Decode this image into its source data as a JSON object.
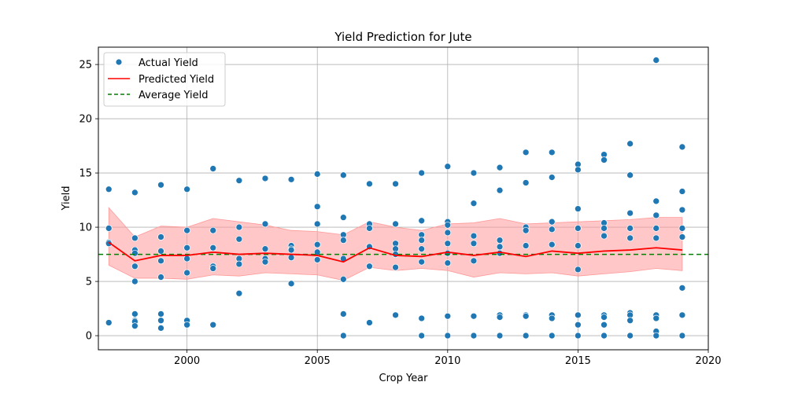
{
  "chart_data": {
    "type": "scatter",
    "title": "Yield Prediction for Jute",
    "xlabel": "Crop Year",
    "ylabel": "Yield",
    "xlim": [
      1996.6,
      2020.0
    ],
    "ylim": [
      -1.3,
      26.6
    ],
    "xticks": [
      2000,
      2005,
      2010,
      2015,
      2020
    ],
    "yticks": [
      0,
      5,
      10,
      15,
      20,
      25
    ],
    "grid": true,
    "legend_position": "top-left",
    "colors": {
      "actual": "#1f77b4",
      "predicted": "#ff0000",
      "average": "#008000",
      "band": "#ff9999"
    },
    "series": [
      {
        "name": "Actual Yield",
        "kind": "scatter",
        "points": [
          [
            1997,
            13.5
          ],
          [
            1997,
            9.9
          ],
          [
            1997,
            8.6
          ],
          [
            1997,
            8.5
          ],
          [
            1997,
            1.2
          ],
          [
            1998,
            13.2
          ],
          [
            1998,
            9.0
          ],
          [
            1998,
            7.9
          ],
          [
            1998,
            7.6
          ],
          [
            1998,
            6.4
          ],
          [
            1998,
            5.0
          ],
          [
            1998,
            2.0
          ],
          [
            1998,
            1.4
          ],
          [
            1998,
            1.3
          ],
          [
            1998,
            0.9
          ],
          [
            1999,
            13.9
          ],
          [
            1999,
            9.1
          ],
          [
            1999,
            7.8
          ],
          [
            1999,
            6.9
          ],
          [
            1999,
            5.4
          ],
          [
            1999,
            2.0
          ],
          [
            1999,
            1.4
          ],
          [
            1999,
            0.7
          ],
          [
            2000,
            13.5
          ],
          [
            2000,
            9.7
          ],
          [
            2000,
            8.1
          ],
          [
            2000,
            7.1
          ],
          [
            2000,
            5.8
          ],
          [
            2000,
            1.4
          ],
          [
            2000,
            1.0
          ],
          [
            2001,
            15.4
          ],
          [
            2001,
            9.7
          ],
          [
            2001,
            8.1
          ],
          [
            2001,
            6.4
          ],
          [
            2001,
            6.2
          ],
          [
            2001,
            1.0
          ],
          [
            2002,
            14.3
          ],
          [
            2002,
            10.0
          ],
          [
            2002,
            8.9
          ],
          [
            2002,
            7.1
          ],
          [
            2002,
            6.6
          ],
          [
            2002,
            3.9
          ],
          [
            2003,
            14.5
          ],
          [
            2003,
            10.3
          ],
          [
            2003,
            8.0
          ],
          [
            2003,
            7.1
          ],
          [
            2003,
            6.8
          ],
          [
            2004,
            14.4
          ],
          [
            2004,
            8.3
          ],
          [
            2004,
            8.0
          ],
          [
            2004,
            7.9
          ],
          [
            2004,
            7.2
          ],
          [
            2004,
            4.8
          ],
          [
            2005,
            14.9
          ],
          [
            2005,
            11.9
          ],
          [
            2005,
            10.3
          ],
          [
            2005,
            8.4
          ],
          [
            2005,
            7.7
          ],
          [
            2005,
            7.0
          ],
          [
            2006,
            14.8
          ],
          [
            2006,
            10.9
          ],
          [
            2006,
            9.3
          ],
          [
            2006,
            8.8
          ],
          [
            2006,
            7.1
          ],
          [
            2006,
            5.2
          ],
          [
            2006,
            2.0
          ],
          [
            2006,
            0.0
          ],
          [
            2007,
            14.0
          ],
          [
            2007,
            10.3
          ],
          [
            2007,
            9.9
          ],
          [
            2007,
            8.2
          ],
          [
            2007,
            6.4
          ],
          [
            2007,
            1.2
          ],
          [
            2008,
            14.0
          ],
          [
            2008,
            10.3
          ],
          [
            2008,
            8.5
          ],
          [
            2008,
            8.0
          ],
          [
            2008,
            7.5
          ],
          [
            2008,
            6.3
          ],
          [
            2008,
            1.9
          ],
          [
            2009,
            15.0
          ],
          [
            2009,
            10.6
          ],
          [
            2009,
            9.3
          ],
          [
            2009,
            8.8
          ],
          [
            2009,
            8.0
          ],
          [
            2009,
            6.8
          ],
          [
            2009,
            1.6
          ],
          [
            2009,
            0.0
          ],
          [
            2010,
            15.6
          ],
          [
            2010,
            10.5
          ],
          [
            2010,
            10.2
          ],
          [
            2010,
            9.5
          ],
          [
            2010,
            8.5
          ],
          [
            2010,
            7.6
          ],
          [
            2010,
            6.7
          ],
          [
            2010,
            1.8
          ],
          [
            2010,
            0.0
          ],
          [
            2011,
            15.0
          ],
          [
            2011,
            12.2
          ],
          [
            2011,
            9.2
          ],
          [
            2011,
            8.5
          ],
          [
            2011,
            6.9
          ],
          [
            2011,
            1.8
          ],
          [
            2011,
            0.0
          ],
          [
            2012,
            15.5
          ],
          [
            2012,
            13.4
          ],
          [
            2012,
            8.8
          ],
          [
            2012,
            8.2
          ],
          [
            2012,
            7.6
          ],
          [
            2012,
            1.9
          ],
          [
            2012,
            1.7
          ],
          [
            2012,
            0.0
          ],
          [
            2013,
            16.9
          ],
          [
            2013,
            14.1
          ],
          [
            2013,
            10.0
          ],
          [
            2013,
            9.7
          ],
          [
            2013,
            8.3
          ],
          [
            2013,
            1.9
          ],
          [
            2013,
            1.8
          ],
          [
            2013,
            0.0
          ],
          [
            2014,
            16.9
          ],
          [
            2014,
            14.6
          ],
          [
            2014,
            10.5
          ],
          [
            2014,
            9.8
          ],
          [
            2014,
            8.4
          ],
          [
            2014,
            1.9
          ],
          [
            2014,
            1.6
          ],
          [
            2014,
            0.0
          ],
          [
            2015,
            15.8
          ],
          [
            2015,
            15.3
          ],
          [
            2015,
            11.7
          ],
          [
            2015,
            9.9
          ],
          [
            2015,
            8.3
          ],
          [
            2015,
            6.1
          ],
          [
            2015,
            1.9
          ],
          [
            2015,
            1.0
          ],
          [
            2015,
            0.0
          ],
          [
            2016,
            16.7
          ],
          [
            2016,
            16.2
          ],
          [
            2016,
            10.4
          ],
          [
            2016,
            9.9
          ],
          [
            2016,
            9.2
          ],
          [
            2016,
            1.9
          ],
          [
            2016,
            1.7
          ],
          [
            2016,
            1.0
          ],
          [
            2016,
            0.0
          ],
          [
            2017,
            17.7
          ],
          [
            2017,
            14.8
          ],
          [
            2017,
            11.3
          ],
          [
            2017,
            9.9
          ],
          [
            2017,
            9.0
          ],
          [
            2017,
            2.1
          ],
          [
            2017,
            1.9
          ],
          [
            2017,
            1.4
          ],
          [
            2017,
            0.0
          ],
          [
            2018,
            25.4
          ],
          [
            2018,
            12.4
          ],
          [
            2018,
            11.1
          ],
          [
            2018,
            9.9
          ],
          [
            2018,
            9.0
          ],
          [
            2018,
            1.9
          ],
          [
            2018,
            1.6
          ],
          [
            2018,
            0.4
          ],
          [
            2018,
            0.0
          ],
          [
            2019,
            17.4
          ],
          [
            2019,
            13.3
          ],
          [
            2019,
            11.6
          ],
          [
            2019,
            9.9
          ],
          [
            2019,
            9.1
          ],
          [
            2019,
            4.4
          ],
          [
            2019,
            1.9
          ],
          [
            2019,
            0.0
          ]
        ]
      },
      {
        "name": "Predicted Yield",
        "kind": "line",
        "x": [
          1997,
          1998,
          1999,
          2000,
          2001,
          2002,
          2003,
          2004,
          2005,
          2006,
          2007,
          2008,
          2009,
          2010,
          2011,
          2012,
          2013,
          2014,
          2015,
          2016,
          2017,
          2018,
          2019
        ],
        "y": [
          8.6,
          6.9,
          7.4,
          7.4,
          7.7,
          7.5,
          7.6,
          7.5,
          7.4,
          6.8,
          8.1,
          7.4,
          7.3,
          7.7,
          7.4,
          7.7,
          7.3,
          7.8,
          7.6,
          7.8,
          7.9,
          8.1,
          7.9
        ],
        "band_upper": [
          11.8,
          9.1,
          10.1,
          10.0,
          10.8,
          10.5,
          10.2,
          9.7,
          9.6,
          9.3,
          10.5,
          10.0,
          9.7,
          10.3,
          10.4,
          10.8,
          10.3,
          10.4,
          10.5,
          10.6,
          10.7,
          10.9,
          10.9
        ],
        "band_lower": [
          6.5,
          5.3,
          5.3,
          5.2,
          5.6,
          5.5,
          5.8,
          5.7,
          5.6,
          5.1,
          6.3,
          6.0,
          6.2,
          6.0,
          5.4,
          5.8,
          5.7,
          5.8,
          5.5,
          5.7,
          5.9,
          6.2,
          6.0
        ]
      },
      {
        "name": "Average Yield",
        "kind": "hline",
        "y": 7.5
      }
    ]
  }
}
